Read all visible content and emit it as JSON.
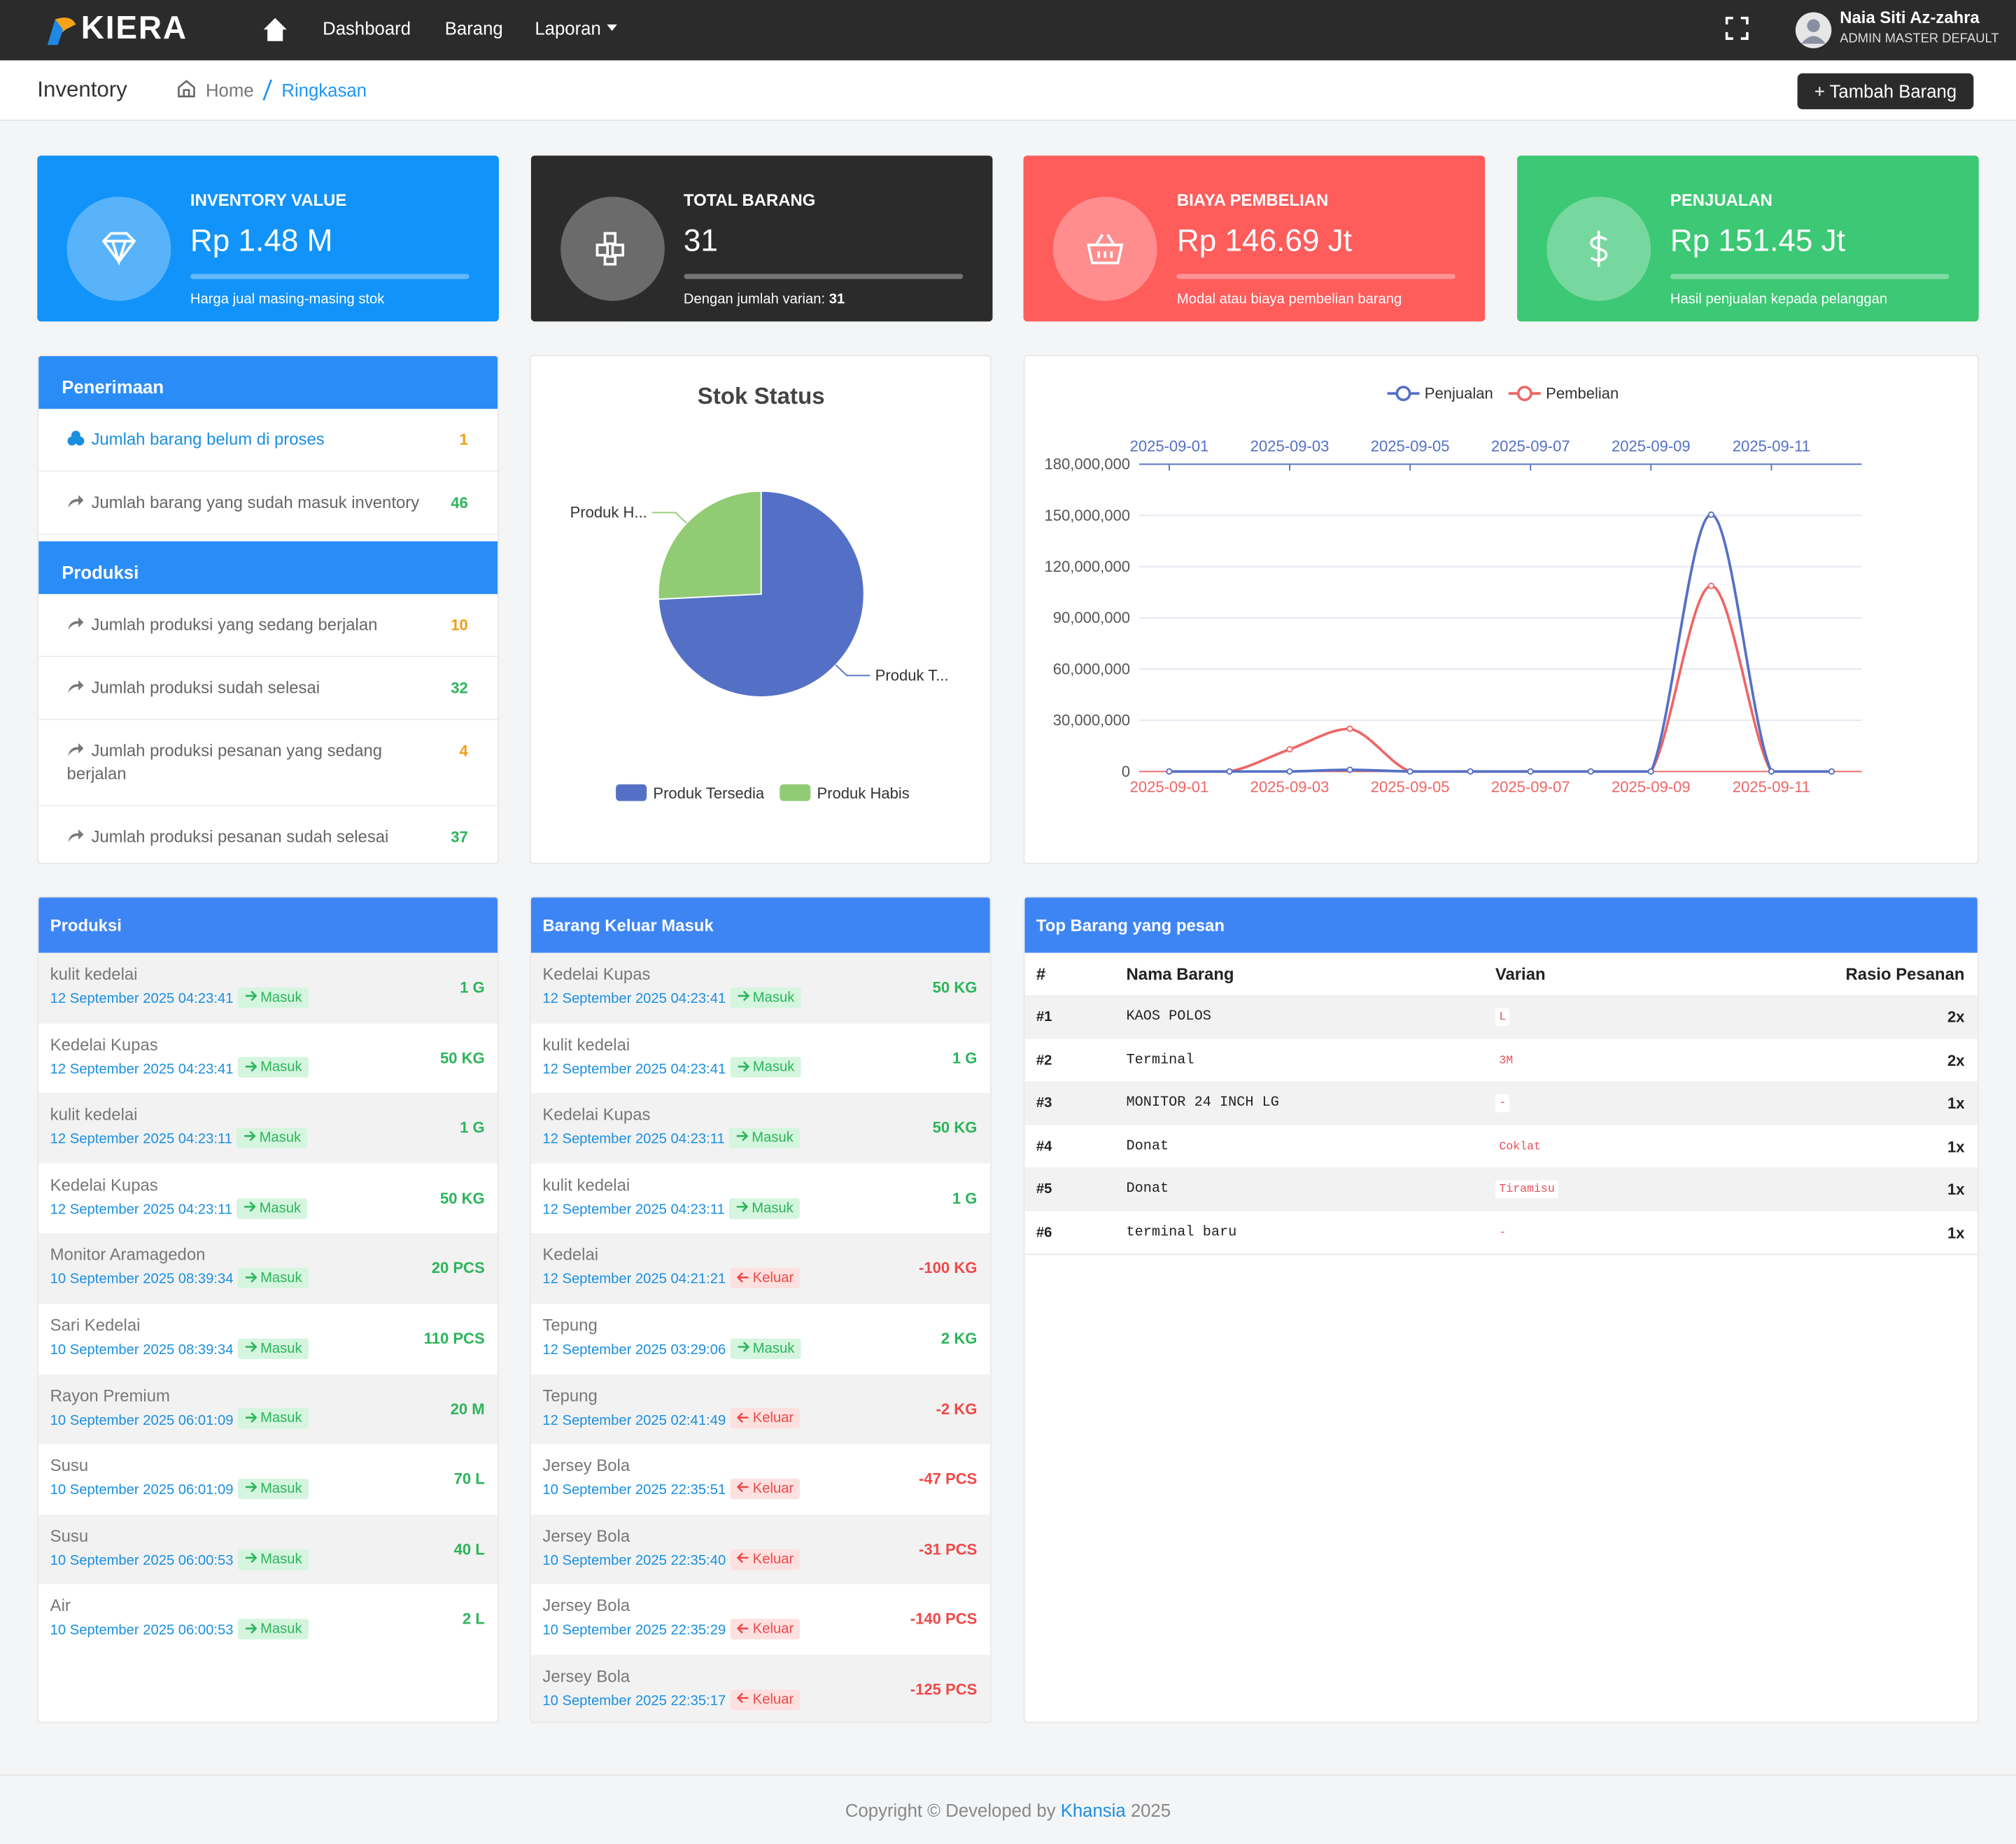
{
  "navbar": {
    "brand": "KIERA",
    "menu": [
      "Dashboard",
      "Barang",
      "Laporan"
    ],
    "user_name": "Naia Siti Az-zahra",
    "user_role": "ADMIN MASTER DEFAULT"
  },
  "header": {
    "title": "Inventory",
    "breadcrumb": [
      "Home",
      "Ringkasan"
    ],
    "button": "+ Tambah Barang"
  },
  "stats": [
    {
      "label": "INVENTORY VALUE",
      "value": "Rp 1.48 M",
      "note": "Harga jual masing-masing stok"
    },
    {
      "label": "TOTAL BARANG",
      "value": "31",
      "note": "Dengan jumlah varian:",
      "note_value": "31"
    },
    {
      "label": "BIAYA PEMBELIAN",
      "value": "Rp 146.69 Jt",
      "note": "Modal atau biaya pembelian barang"
    },
    {
      "label": "PENJUALAN",
      "value": "Rp 151.45 Jt",
      "note": "Hasil penjualan kepada pelanggan"
    }
  ],
  "summary": [
    {
      "title": "Penerimaan",
      "items": [
        {
          "label": "Jumlah barang belum di proses",
          "count": 1
        },
        {
          "label": "Jumlah barang yang sudah masuk inventory",
          "count": 46
        }
      ]
    },
    {
      "title": "Produksi",
      "items": [
        {
          "label": "Jumlah produksi yang sedang berjalan",
          "count": 10
        },
        {
          "label": "Jumlah produksi sudah selesai",
          "count": 32
        },
        {
          "label": "Jumlah produksi pesanan yang sedang berjalan",
          "count": 4
        },
        {
          "label": "Jumlah produksi pesanan sudah selesai",
          "count": 37
        }
      ]
    }
  ],
  "chart_data": [
    {
      "type": "pie",
      "title": "Stok Status",
      "categories": [
        "Produk Tersedia",
        "Produk Habis"
      ],
      "slice_labels": [
        "Produk T...",
        "Produk H..."
      ],
      "values": [
        23,
        8
      ],
      "colors": [
        "#5470c6",
        "#91cc75"
      ],
      "legend_position": "bottom"
    },
    {
      "type": "line",
      "legend_position": "top",
      "smooth": true,
      "grid": true,
      "categories": [
        "2025-09-01",
        null,
        "2025-09-03",
        null,
        "2025-09-05",
        null,
        "2025-09-07",
        null,
        "2025-09-09",
        null,
        "2025-09-11",
        null
      ],
      "ylim": [
        0,
        180000000
      ],
      "yticks": [
        0,
        {
          "value": 30000000,
          "label": "30,000,000"
        },
        {
          "value": 60000000,
          "label": "60,000,000"
        },
        {
          "value": 90000000,
          "label": "90,000,000"
        },
        {
          "value": 120000000,
          "label": "120,000,000"
        },
        {
          "value": 150000000,
          "label": "150,000,000"
        },
        {
          "value": 180000000,
          "label": "180,000,000"
        }
      ],
      "series": [
        {
          "name": "Penjualan",
          "color": "#5470c6",
          "values": [
            0,
            0,
            0,
            1000000,
            0,
            0,
            0,
            0,
            0,
            150450000,
            0,
            0
          ]
        },
        {
          "name": "Pembelian",
          "color": "#ee6666",
          "values": [
            0,
            0,
            13000000,
            25000000,
            0,
            0,
            0,
            0,
            0,
            108690000,
            0,
            0
          ]
        }
      ]
    }
  ],
  "produksi_log": {
    "title": "Produksi",
    "rows": [
      {
        "name": "kulit kedelai",
        "date": "12 September 2025 04:23:41",
        "direction": "Masuk",
        "qty": "1 G"
      },
      {
        "name": "Kedelai Kupas",
        "date": "12 September 2025 04:23:41",
        "direction": "Masuk",
        "qty": "50 KG"
      },
      {
        "name": "kulit kedelai",
        "date": "12 September 2025 04:23:11",
        "direction": "Masuk",
        "qty": "1 G"
      },
      {
        "name": "Kedelai Kupas",
        "date": "12 September 2025 04:23:11",
        "direction": "Masuk",
        "qty": "50 KG"
      },
      {
        "name": "Monitor Aramagedon",
        "date": "10 September 2025 08:39:34",
        "direction": "Masuk",
        "qty": "20 PCS"
      },
      {
        "name": "Sari Kedelai",
        "date": "10 September 2025 08:39:34",
        "direction": "Masuk",
        "qty": "110 PCS"
      },
      {
        "name": "Rayon Premium",
        "date": "10 September 2025 06:01:09",
        "direction": "Masuk",
        "qty": "20 M"
      },
      {
        "name": "Susu",
        "date": "10 September 2025 06:01:09",
        "direction": "Masuk",
        "qty": "70 L"
      },
      {
        "name": "Susu",
        "date": "10 September 2025 06:00:53",
        "direction": "Masuk",
        "qty": "40 L"
      },
      {
        "name": "Air",
        "date": "10 September 2025 06:00:53",
        "direction": "Masuk",
        "qty": "2 L"
      }
    ]
  },
  "barang_log": {
    "title": "Barang Keluar Masuk",
    "rows": [
      {
        "name": "Kedelai Kupas",
        "date": "12 September 2025 04:23:41",
        "direction": "Masuk",
        "qty": "50 KG"
      },
      {
        "name": "kulit kedelai",
        "date": "12 September 2025 04:23:41",
        "direction": "Masuk",
        "qty": "1 G"
      },
      {
        "name": "Kedelai Kupas",
        "date": "12 September 2025 04:23:11",
        "direction": "Masuk",
        "qty": "50 KG"
      },
      {
        "name": "kulit kedelai",
        "date": "12 September 2025 04:23:11",
        "direction": "Masuk",
        "qty": "1 G"
      },
      {
        "name": "Kedelai",
        "date": "12 September 2025 04:21:21",
        "direction": "Keluar",
        "qty": "-100 KG"
      },
      {
        "name": "Tepung",
        "date": "12 September 2025 03:29:06",
        "direction": "Masuk",
        "qty": "2 KG"
      },
      {
        "name": "Tepung",
        "date": "12 September 2025 02:41:49",
        "direction": "Keluar",
        "qty": "-2 KG"
      },
      {
        "name": "Jersey Bola",
        "date": "10 September 2025 22:35:51",
        "direction": "Keluar",
        "qty": "-47 PCS"
      },
      {
        "name": "Jersey Bola",
        "date": "10 September 2025 22:35:40",
        "direction": "Keluar",
        "qty": "-31 PCS"
      },
      {
        "name": "Jersey Bola",
        "date": "10 September 2025 22:35:29",
        "direction": "Keluar",
        "qty": "-140 PCS"
      },
      {
        "name": "Jersey Bola",
        "date": "10 September 2025 22:35:17",
        "direction": "Keluar",
        "qty": "-125 PCS"
      }
    ]
  },
  "top_barang": {
    "title": "Top Barang yang pesan",
    "columns": [
      "#",
      "Nama Barang",
      "Varian",
      "Rasio Pesanan"
    ],
    "rows": [
      [
        "#1",
        "KAOS POLOS",
        "L",
        "2x"
      ],
      [
        "#2",
        "Terminal",
        "3M",
        "2x"
      ],
      [
        "#3",
        "MONITOR 24 INCH LG",
        "-",
        "1x"
      ],
      [
        "#4",
        "Donat",
        "Coklat",
        "1x"
      ],
      [
        "#5",
        "Donat",
        "Tiramisu",
        "1x"
      ],
      [
        "#6",
        "terminal baru",
        "-",
        "1x"
      ]
    ]
  },
  "footer": {
    "text": "Copyright © Developed by",
    "link": "Khansia",
    "year": "2025"
  }
}
